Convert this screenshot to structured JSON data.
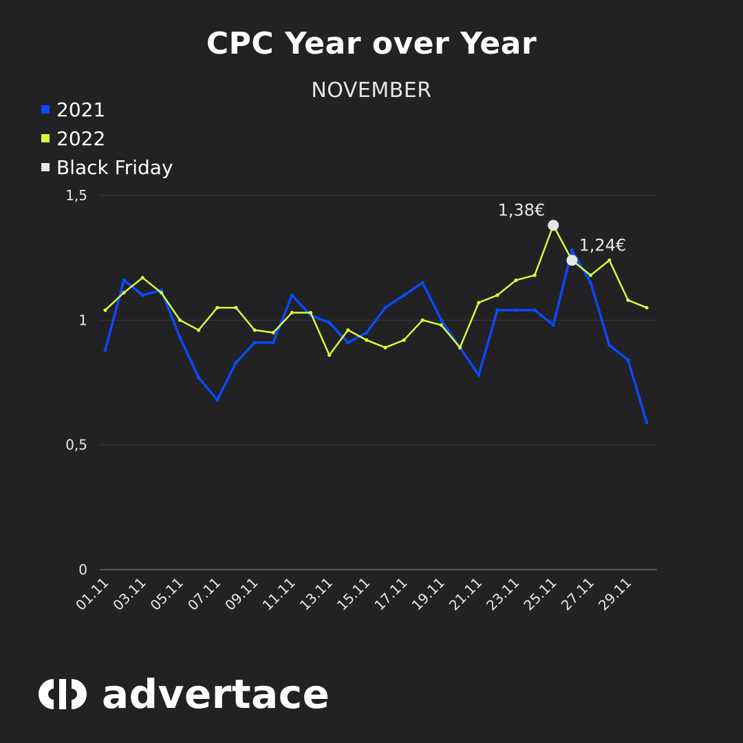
{
  "chart_data": {
    "type": "line",
    "title": "CPC Year over Year",
    "subtitle": "NOVEMBER",
    "x": [
      "01.11",
      "02.11",
      "03.11",
      "04.11",
      "05.11",
      "06.11",
      "07.11",
      "08.11",
      "09.11",
      "10.11",
      "11.11",
      "12.11",
      "13.11",
      "14.11",
      "15.11",
      "16.11",
      "17.11",
      "18.11",
      "19.11",
      "20.11",
      "21.11",
      "22.11",
      "23.11",
      "24.11",
      "25.11",
      "26.11",
      "27.11",
      "28.11",
      "29.11",
      "30.11"
    ],
    "x_tick_labels": [
      "01.11",
      "03.11",
      "05.11",
      "07.11",
      "09.11",
      "11.11",
      "13.11",
      "15.11",
      "17.11",
      "19.11",
      "21.11",
      "23.11",
      "25.11",
      "27.11",
      "29.11"
    ],
    "y_ticks": [
      0,
      0.5,
      1,
      1.5
    ],
    "y_tick_labels": [
      "0",
      "0,5",
      "1",
      "1,5"
    ],
    "ylim": [
      0,
      1.5
    ],
    "grid": true,
    "legend_position": "top-left",
    "series": [
      {
        "name": "2021",
        "color": "#0a4aff",
        "values": [
          0.88,
          1.16,
          1.1,
          1.12,
          0.93,
          0.77,
          0.68,
          0.83,
          0.91,
          0.91,
          1.1,
          1.02,
          0.99,
          0.91,
          0.95,
          1.05,
          1.1,
          1.15,
          1.0,
          0.89,
          0.78,
          1.04,
          1.04,
          1.04,
          0.98,
          1.28,
          1.15,
          0.9,
          0.84,
          0.59
        ]
      },
      {
        "name": "2022",
        "color": "#d7ff3c",
        "values": [
          1.04,
          1.11,
          1.17,
          1.11,
          1.0,
          0.96,
          1.05,
          1.05,
          0.96,
          0.95,
          1.03,
          1.03,
          0.86,
          0.96,
          0.92,
          0.89,
          0.92,
          1.0,
          0.98,
          0.89,
          1.07,
          1.1,
          1.16,
          1.18,
          1.38,
          1.24,
          1.18,
          1.24,
          1.08,
          1.05
        ]
      }
    ],
    "black_friday": {
      "name": "Black Friday",
      "color": "#e6e6e6",
      "points": [
        {
          "x": "25.11",
          "value": 1.38,
          "label": "1,38€"
        },
        {
          "x": "26.11",
          "value": 1.24,
          "label": "1,24€"
        }
      ]
    }
  },
  "logo": {
    "text": "advertace"
  }
}
